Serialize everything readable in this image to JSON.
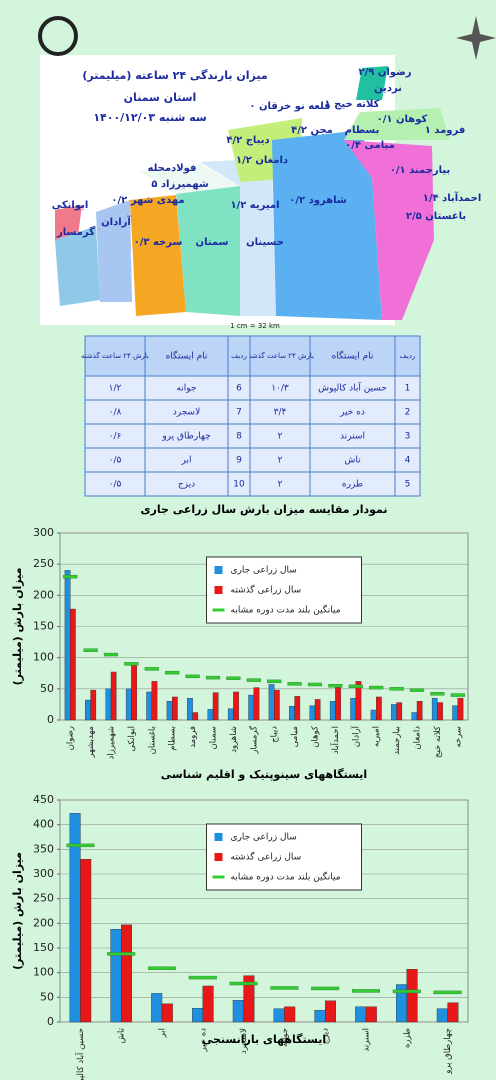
{
  "map": {
    "title": "میزان بارندگی ۲۴ ساعته (میلیمتر)",
    "province": "استان سمنان",
    "date": "سه شنبه ۱۴۰۰/۱۲/۰۳",
    "scale": "1 cm = 32 km",
    "labels": [
      "رضوان ۲/۹",
      "نردین",
      "کلاته خیج ۱",
      "قلعه نو خرقان ۰",
      "کوهان ۰/۱",
      "فرومد ۱",
      "مجن ۴/۲",
      "بسطام",
      "میامی ۰/۴",
      "دیباج ۴/۲",
      "دامغان ۱/۲",
      "بیارجمند ۰/۱",
      "احمدآباد ۱/۴",
      "باغستان ۲/۵",
      "شاهرود ۰/۲",
      "امیریه ۱/۲",
      "حسینان",
      "فولادمحله",
      "شهمیرزاد ۵",
      "مهدی شهر ۰/۲",
      "ایوانکی",
      "آرادان",
      "گرمسار",
      "سرخه ۰/۳",
      "سمنان"
    ]
  },
  "table": {
    "header": [
      "ردیف",
      "نام ایستگاه",
      "بارش ۲۴ ساعت گذشته",
      "ردیف",
      "نام ایستگاه",
      "بارش ۲۴ ساعت گذشته"
    ],
    "rows": [
      [
        1,
        "حسین آباد کالپوش",
        "۱۰/۳",
        6,
        "جوانه",
        "۱/۲"
      ],
      [
        2,
        "ده خیر",
        "۳/۴",
        7,
        "لاسجرد",
        "۰/۸"
      ],
      [
        3,
        "اسنرند",
        "۲",
        8,
        "چهارطاق پرو",
        "۰/۶"
      ],
      [
        4,
        "تاش",
        "۲",
        9,
        "ابر",
        "۰/۵"
      ],
      [
        5,
        "طزره",
        "۲",
        10,
        "دیزج",
        "۰/۵"
      ]
    ]
  },
  "chart_data": [
    {
      "type": "bar",
      "title": "نمودار مقایسه میزان بارش سال زراعی جاری",
      "y_label": "میزان بارش (میلیمتر)",
      "x_label": "ایستگاههای سینوپتیک و اقلیم شناسی",
      "categories": [
        "رضوان",
        "مهدیشهر",
        "شهمیرزاد",
        "ایوانکی",
        "باغستان",
        "بسطام",
        "فرومد",
        "سمنان",
        "شاهرود",
        "گرمسار",
        "دیباج",
        "میامی",
        "کوهان",
        "احمدآباد",
        "آرادان",
        "امیریه",
        "بیارجمند",
        "دامغان",
        "کلاته خیج",
        "سرخه"
      ],
      "series": [
        {
          "name": "سال زراعی جاری",
          "color": "#1f8fe0",
          "mark": "bar",
          "values": [
            240,
            32,
            50,
            50,
            45,
            30,
            35,
            17,
            18,
            40,
            57,
            22,
            23,
            30,
            35,
            16,
            25,
            12,
            35,
            23
          ]
        },
        {
          "name": "سال زراعی گذشته",
          "color": "#e81818",
          "mark": "bar",
          "values": [
            178,
            48,
            77,
            90,
            62,
            37,
            12,
            44,
            45,
            52,
            48,
            38,
            33,
            52,
            62,
            37,
            28,
            30,
            28,
            35
          ]
        },
        {
          "name": "میانگین بلند مدت دوره مشابه",
          "color": "#33cc33",
          "mark": "dash",
          "values": [
            230,
            112,
            105,
            90,
            82,
            76,
            70,
            68,
            67,
            64,
            62,
            58,
            57,
            55,
            54,
            52,
            50,
            48,
            42,
            40
          ]
        }
      ],
      "ylim": [
        0,
        300
      ],
      "yticks": [
        0,
        50,
        100,
        150,
        200,
        250,
        300
      ],
      "grid": true,
      "legend": "upper center"
    },
    {
      "type": "bar",
      "y_label": "میزان بارش (میلیمتر)",
      "x_label": "ایستگاههای بارانسنجی",
      "categories": [
        "حسین آباد کالپوش",
        "تاش",
        "ابر",
        "ده خیر",
        "لاسجرد",
        "جوانه",
        "دیزج",
        "اسنرند",
        "طزره",
        "چهارطاق پرو"
      ],
      "series": [
        {
          "name": "سال زراعی جاری",
          "color": "#1f8fe0",
          "mark": "bar",
          "values": [
            423,
            188,
            58,
            28,
            44,
            27,
            24,
            31,
            76,
            27
          ]
        },
        {
          "name": "سال زراعی گذشته",
          "color": "#e81818",
          "mark": "bar",
          "values": [
            330,
            197,
            37,
            73,
            94,
            31,
            43,
            31,
            107,
            39
          ]
        },
        {
          "name": "میانگین بلند مدت دوره مشابه",
          "color": "#33cc33",
          "mark": "dash",
          "values": [
            358,
            138,
            109,
            90,
            78,
            69,
            68,
            63,
            62,
            60
          ]
        }
      ],
      "ylim": [
        0,
        450
      ],
      "yticks": [
        0,
        50,
        100,
        150,
        200,
        250,
        300,
        350,
        400,
        450
      ],
      "grid": true,
      "legend": "upper center"
    }
  ]
}
